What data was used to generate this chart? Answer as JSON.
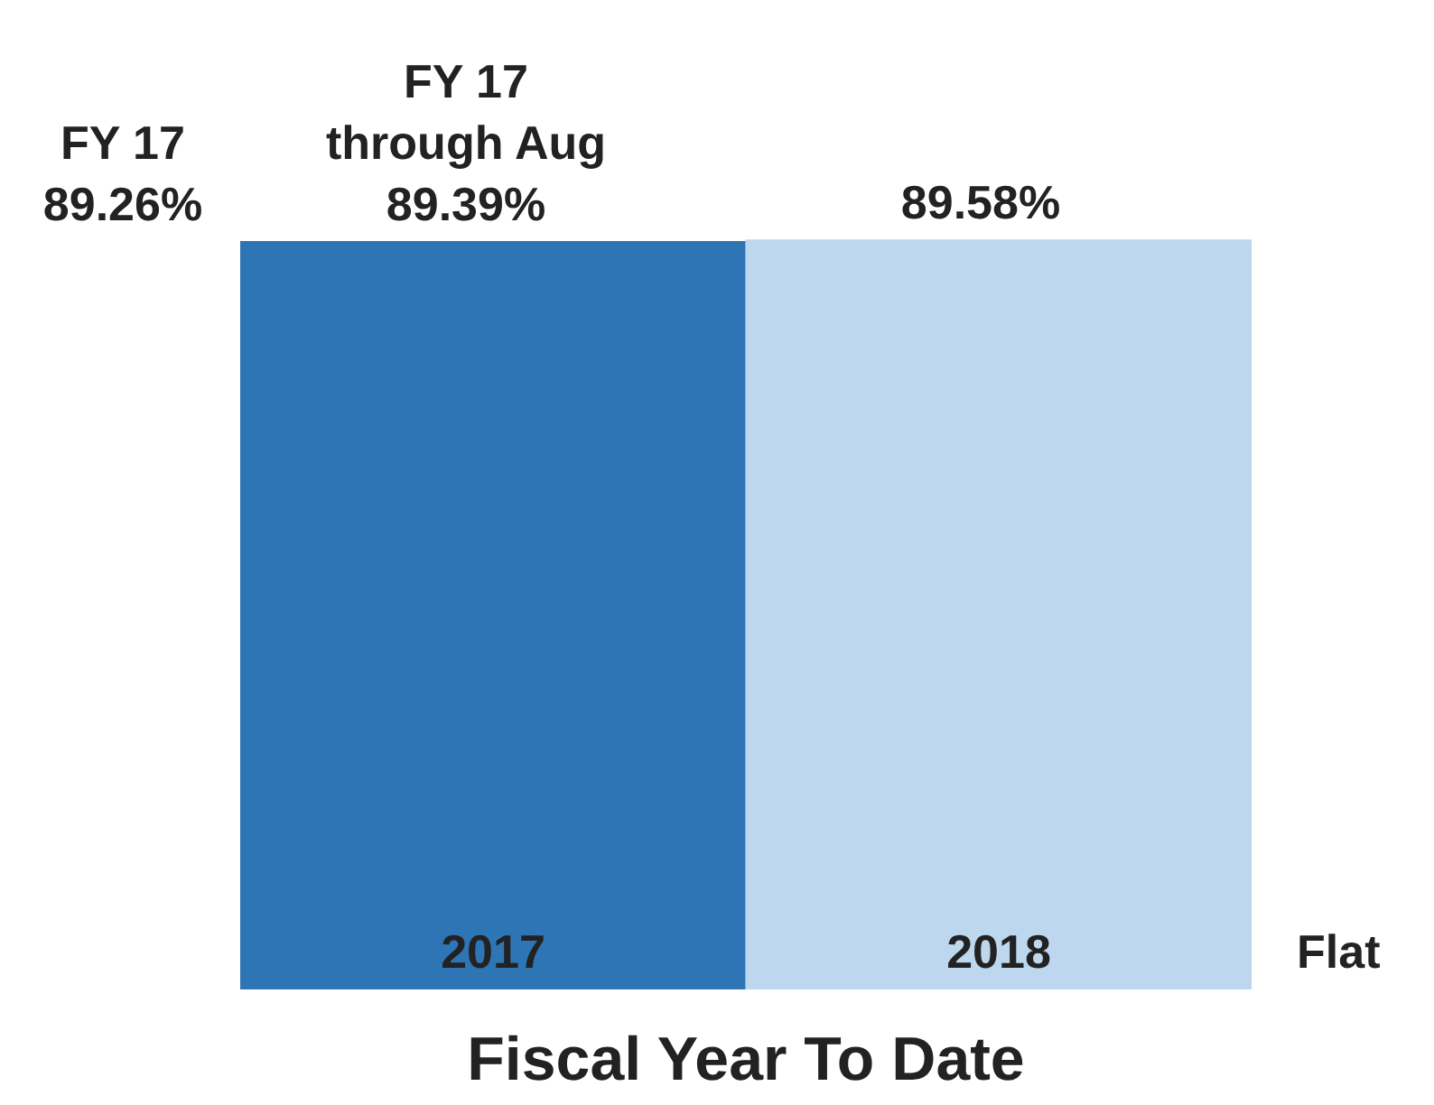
{
  "chart_data": {
    "type": "bar",
    "xlabel": "Fiscal Year To Date",
    "categories": [
      "2017",
      "2018"
    ],
    "values": [
      89.39,
      89.58
    ],
    "colors": [
      "#2e75b6",
      "#bdd7ee"
    ],
    "value_labels": [
      "FY 17\nthrough Aug\n89.39%",
      "89.58%"
    ],
    "ylim": [
      0,
      90
    ],
    "tick_labels": false,
    "annotations": [
      "FY 17\n89.26%",
      "Flat"
    ]
  }
}
